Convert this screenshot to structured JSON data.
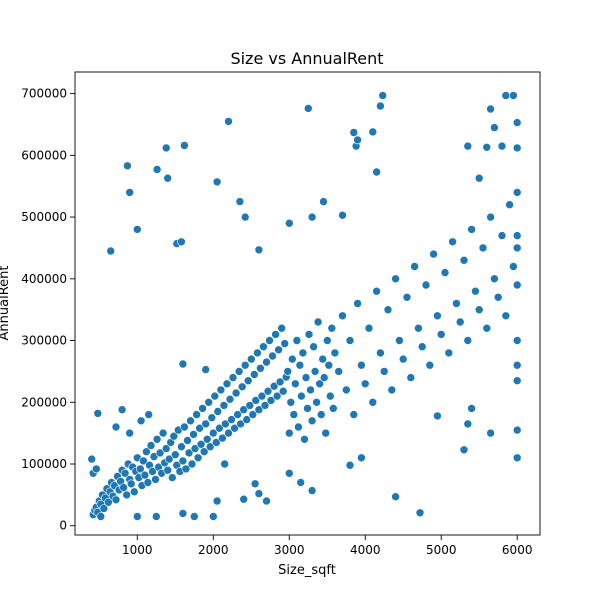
{
  "chart_data": {
    "type": "scatter",
    "title": "Size vs AnnualRent",
    "xlabel": "Size_sqft",
    "ylabel": "AnnualRent",
    "xlim": [
      180,
      6300
    ],
    "ylim": [
      -15000,
      735000
    ],
    "xticks": [
      1000,
      2000,
      3000,
      4000,
      5000,
      6000
    ],
    "yticks": [
      0,
      100000,
      200000,
      300000,
      400000,
      500000,
      600000,
      700000
    ],
    "xtick_labels": [
      "1000",
      "2000",
      "3000",
      "4000",
      "5000",
      "6000"
    ],
    "ytick_labels": [
      "0",
      "100000",
      "200000",
      "300000",
      "400000",
      "500000",
      "600000",
      "700000"
    ],
    "point_color": "#1f77b4",
    "grid": false,
    "series": [
      {
        "points": [
          [
            420,
            18000
          ],
          [
            440,
            25000
          ],
          [
            460,
            30000
          ],
          [
            480,
            22000
          ],
          [
            500,
            40000
          ],
          [
            520,
            35000
          ],
          [
            540,
            50000
          ],
          [
            560,
            28000
          ],
          [
            580,
            45000
          ],
          [
            600,
            60000
          ],
          [
            620,
            38000
          ],
          [
            640,
            55000
          ],
          [
            660,
            70000
          ],
          [
            680,
            48000
          ],
          [
            700,
            65000
          ],
          [
            720,
            42000
          ],
          [
            740,
            80000
          ],
          [
            760,
            58000
          ],
          [
            780,
            72000
          ],
          [
            800,
            90000
          ],
          [
            820,
            62000
          ],
          [
            840,
            85000
          ],
          [
            860,
            50000
          ],
          [
            880,
            100000
          ],
          [
            900,
            75000
          ],
          [
            920,
            68000
          ],
          [
            940,
            95000
          ],
          [
            960,
            55000
          ],
          [
            980,
            88000
          ],
          [
            1000,
            110000
          ],
          [
            1020,
            78000
          ],
          [
            1040,
            92000
          ],
          [
            1060,
            65000
          ],
          [
            1080,
            105000
          ],
          [
            1100,
            82000
          ],
          [
            1120,
            120000
          ],
          [
            1140,
            70000
          ],
          [
            1160,
            98000
          ],
          [
            1180,
            130000
          ],
          [
            1200,
            88000
          ],
          [
            1220,
            112000
          ],
          [
            1240,
            75000
          ],
          [
            1260,
            140000
          ],
          [
            1280,
            95000
          ],
          [
            1300,
            118000
          ],
          [
            1320,
            85000
          ],
          [
            1340,
            150000
          ],
          [
            1360,
            102000
          ],
          [
            1380,
            125000
          ],
          [
            1400,
            90000
          ],
          [
            1420,
            108000
          ],
          [
            1440,
            135000
          ],
          [
            1460,
            78000
          ],
          [
            1480,
            145000
          ],
          [
            1500,
            115000
          ],
          [
            1520,
            98000
          ],
          [
            1540,
            155000
          ],
          [
            1560,
            88000
          ],
          [
            1580,
            128000
          ],
          [
            1600,
            105000
          ],
          [
            1620,
            160000
          ],
          [
            1640,
            92000
          ],
          [
            1660,
            138000
          ],
          [
            1680,
            118000
          ],
          [
            1700,
            170000
          ],
          [
            1720,
            100000
          ],
          [
            1740,
            148000
          ],
          [
            1760,
            125000
          ],
          [
            1780,
            180000
          ],
          [
            1800,
            110000
          ],
          [
            1820,
            158000
          ],
          [
            1840,
            132000
          ],
          [
            1860,
            190000
          ],
          [
            1880,
            120000
          ],
          [
            1900,
            165000
          ],
          [
            1920,
            140000
          ],
          [
            1940,
            200000
          ],
          [
            1960,
            128000
          ],
          [
            1980,
            175000
          ],
          [
            2000,
            150000
          ],
          [
            2020,
            210000
          ],
          [
            2040,
            135000
          ],
          [
            2060,
            185000
          ],
          [
            2080,
            158000
          ],
          [
            2100,
            220000
          ],
          [
            2120,
            142000
          ],
          [
            2140,
            195000
          ],
          [
            2160,
            165000
          ],
          [
            2180,
            230000
          ],
          [
            2200,
            150000
          ],
          [
            2220,
            205000
          ],
          [
            2240,
            172000
          ],
          [
            2260,
            240000
          ],
          [
            2280,
            158000
          ],
          [
            2300,
            215000
          ],
          [
            2320,
            180000
          ],
          [
            2340,
            250000
          ],
          [
            2360,
            165000
          ],
          [
            2380,
            225000
          ],
          [
            2400,
            188000
          ],
          [
            2420,
            260000
          ],
          [
            2440,
            172000
          ],
          [
            2460,
            235000
          ],
          [
            2480,
            195000
          ],
          [
            2500,
            270000
          ],
          [
            2520,
            180000
          ],
          [
            2540,
            245000
          ],
          [
            2560,
            203000
          ],
          [
            2580,
            280000
          ],
          [
            2600,
            188000
          ],
          [
            2620,
            255000
          ],
          [
            2640,
            210000
          ],
          [
            2660,
            290000
          ],
          [
            2680,
            195000
          ],
          [
            2700,
            265000
          ],
          [
            2720,
            218000
          ],
          [
            2740,
            300000
          ],
          [
            2760,
            203000
          ],
          [
            2780,
            275000
          ],
          [
            2800,
            226000
          ],
          [
            2820,
            310000
          ],
          [
            2840,
            210000
          ],
          [
            2860,
            285000
          ],
          [
            2880,
            233000
          ],
          [
            2900,
            320000
          ],
          [
            2920,
            218000
          ],
          [
            2940,
            295000
          ],
          [
            2960,
            241000
          ],
          [
            2980,
            250000
          ],
          [
            3000,
            150000
          ],
          [
            3020,
            200000
          ],
          [
            3040,
            270000
          ],
          [
            3060,
            180000
          ],
          [
            3080,
            230000
          ],
          [
            3100,
            300000
          ],
          [
            3120,
            160000
          ],
          [
            3140,
            260000
          ],
          [
            3160,
            210000
          ],
          [
            3180,
            280000
          ],
          [
            3200,
            140000
          ],
          [
            3220,
            240000
          ],
          [
            3240,
            190000
          ],
          [
            3260,
            310000
          ],
          [
            3280,
            220000
          ],
          [
            3300,
            170000
          ],
          [
            3320,
            290000
          ],
          [
            3340,
            250000
          ],
          [
            3360,
            200000
          ],
          [
            3380,
            330000
          ],
          [
            3400,
            230000
          ],
          [
            3420,
            180000
          ],
          [
            3440,
            270000
          ],
          [
            3460,
            240000
          ],
          [
            3480,
            150000
          ],
          [
            3500,
            300000
          ],
          [
            3520,
            260000
          ],
          [
            3540,
            210000
          ],
          [
            3560,
            320000
          ],
          [
            3580,
            190000
          ],
          [
            3600,
            280000
          ],
          [
            3650,
            250000
          ],
          [
            3700,
            340000
          ],
          [
            3750,
            220000
          ],
          [
            3800,
            300000
          ],
          [
            3850,
            180000
          ],
          [
            3900,
            360000
          ],
          [
            3950,
            260000
          ],
          [
            4000,
            230000
          ],
          [
            4050,
            320000
          ],
          [
            4100,
            200000
          ],
          [
            4150,
            380000
          ],
          [
            4200,
            280000
          ],
          [
            4250,
            250000
          ],
          [
            4300,
            350000
          ],
          [
            4350,
            220000
          ],
          [
            4400,
            400000
          ],
          [
            4450,
            300000
          ],
          [
            4500,
            270000
          ],
          [
            4550,
            370000
          ],
          [
            4600,
            240000
          ],
          [
            4650,
            420000
          ],
          [
            4700,
            320000
          ],
          [
            4750,
            290000
          ],
          [
            4800,
            390000
          ],
          [
            4850,
            260000
          ],
          [
            4900,
            440000
          ],
          [
            4950,
            340000
          ],
          [
            5000,
            310000
          ],
          [
            5050,
            410000
          ],
          [
            5100,
            280000
          ],
          [
            5150,
            460000
          ],
          [
            5200,
            360000
          ],
          [
            5250,
            330000
          ],
          [
            5300,
            430000
          ],
          [
            5350,
            300000
          ],
          [
            5400,
            480000
          ],
          [
            5450,
            380000
          ],
          [
            5500,
            350000
          ],
          [
            5550,
            450000
          ],
          [
            5600,
            320000
          ],
          [
            5650,
            500000
          ],
          [
            5700,
            400000
          ],
          [
            5750,
            370000
          ],
          [
            5800,
            470000
          ],
          [
            5850,
            340000
          ],
          [
            5900,
            520000
          ],
          [
            5950,
            420000
          ],
          [
            6000,
            390000
          ],
          [
            6000,
            450000
          ],
          [
            6000,
            300000
          ],
          [
            6000,
            540000
          ],
          [
            6000,
            260000
          ],
          [
            6000,
            110000
          ],
          [
            6000,
            155000
          ],
          [
            6000,
            470000
          ],
          [
            6000,
            235000
          ],
          [
            650,
            445000
          ],
          [
            870,
            583000
          ],
          [
            900,
            540000
          ],
          [
            1000,
            480000
          ],
          [
            1260,
            577000
          ],
          [
            1380,
            612000
          ],
          [
            1400,
            563000
          ],
          [
            1520,
            457000
          ],
          [
            1580,
            460000
          ],
          [
            1620,
            616000
          ],
          [
            2050,
            557000
          ],
          [
            2200,
            655000
          ],
          [
            2350,
            525000
          ],
          [
            2420,
            500000
          ],
          [
            2600,
            447000
          ],
          [
            3000,
            490000
          ],
          [
            3250,
            676000
          ],
          [
            3300,
            500000
          ],
          [
            3450,
            525000
          ],
          [
            3700,
            503000
          ],
          [
            3850,
            637000
          ],
          [
            3880,
            615000
          ],
          [
            3900,
            625000
          ],
          [
            4100,
            638000
          ],
          [
            4150,
            573000
          ],
          [
            4200,
            680000
          ],
          [
            4230,
            697000
          ],
          [
            4400,
            47000
          ],
          [
            4720,
            21000
          ],
          [
            5300,
            123000
          ],
          [
            5350,
            615000
          ],
          [
            5500,
            563000
          ],
          [
            5600,
            613000
          ],
          [
            5650,
            675000
          ],
          [
            5700,
            645000
          ],
          [
            5800,
            615000
          ],
          [
            5850,
            697000
          ],
          [
            5950,
            697000
          ],
          [
            6000,
            653000
          ],
          [
            6000,
            612000
          ],
          [
            480,
            182000
          ],
          [
            720,
            160000
          ],
          [
            800,
            188000
          ],
          [
            900,
            150000
          ],
          [
            1050,
            170000
          ],
          [
            1150,
            180000
          ],
          [
            1600,
            262000
          ],
          [
            1900,
            253000
          ],
          [
            2150,
            100000
          ],
          [
            2400,
            43000
          ],
          [
            2550,
            68000
          ],
          [
            2600,
            52000
          ],
          [
            2700,
            40000
          ],
          [
            3000,
            85000
          ],
          [
            3150,
            70000
          ],
          [
            3300,
            57000
          ],
          [
            3800,
            98000
          ],
          [
            3950,
            110000
          ],
          [
            4950,
            178000
          ],
          [
            5350,
            165000
          ],
          [
            5650,
            150000
          ],
          [
            5400,
            190000
          ],
          [
            400,
            108000
          ],
          [
            420,
            85000
          ],
          [
            460,
            92000
          ],
          [
            520,
            15000
          ],
          [
            1000,
            15000
          ],
          [
            1250,
            15000
          ],
          [
            1600,
            20000
          ],
          [
            1750,
            15000
          ],
          [
            2000,
            15000
          ],
          [
            2050,
            40000
          ]
        ]
      }
    ]
  }
}
